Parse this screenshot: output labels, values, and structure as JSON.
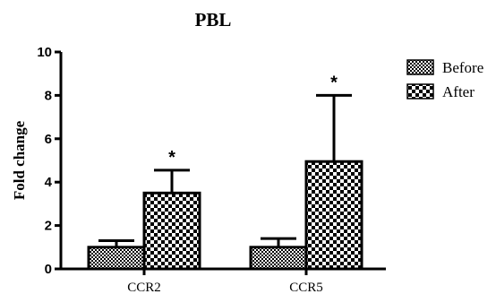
{
  "chart_data": {
    "type": "bar",
    "title": "PBL",
    "ylabel": "Fold change",
    "xlabel": "",
    "ylim": [
      0,
      10
    ],
    "yticks": [
      0,
      2,
      4,
      6,
      8,
      10
    ],
    "categories": [
      "CCR2",
      "CCR5"
    ],
    "series": [
      {
        "name": "Before",
        "values": [
          1.0,
          1.0
        ],
        "error_plus": [
          0.3,
          0.4
        ],
        "pattern": "fine-check"
      },
      {
        "name": "After",
        "values": [
          3.5,
          4.95
        ],
        "error_plus": [
          1.05,
          3.05
        ],
        "pattern": "coarse-check"
      }
    ],
    "significance": [
      "",
      "*"
    ],
    "significance_after": [
      "*",
      "*"
    ],
    "legend_position": "top-right",
    "grid": false
  }
}
